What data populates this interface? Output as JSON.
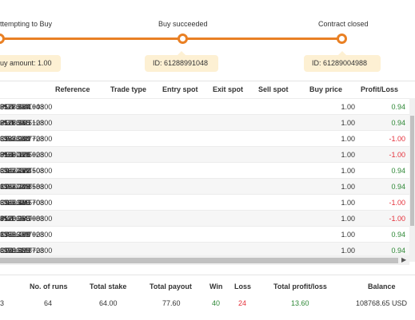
{
  "progress": {
    "steps": [
      {
        "label": "ttempting to Buy",
        "info": "uy amount: 1.00"
      },
      {
        "label": "Buy succeeded",
        "info": "ID: 61288991048"
      },
      {
        "label": "Contract closed",
        "info": "ID: 61289004988"
      }
    ],
    "accent_color": "#e98024"
  },
  "trades": {
    "headers": {
      "reference": "Reference",
      "trade_type": "Trade type",
      "entry_spot": "Entry spot",
      "exit_spot": "Exit spot",
      "sell_spot": "Sell spot",
      "buy_price": "Buy price",
      "profit_loss": "Profit/Loss"
    },
    "rows": [
      {
        "time": "3:29 GMT+0300",
        "reference": "61288991048",
        "trade_type": "PUT",
        "entry_spot": "3577.867",
        "exit_spot": "3577.624",
        "sell_spot": "3577.624",
        "buy_price": "1.00",
        "profit_loss": "0.94"
      },
      {
        "time": "2:39 GMT+0300",
        "reference": "61288925128",
        "trade_type": "PUT",
        "entry_spot": "3577.246",
        "exit_spot": "3576.556",
        "sell_spot": "3576.556",
        "buy_price": "1.00",
        "profit_loss": "0.94"
      },
      {
        "time": "3:54 GMT+0300",
        "reference": "61288227728",
        "trade_type": "CALL",
        "entry_spot": "3567.233",
        "exit_spot": "3567.044",
        "sell_spot": "3567.044",
        "buy_price": "1.00",
        "profit_loss": "-1.00"
      },
      {
        "time": "9:55 GMT+0300",
        "reference": "61287895028",
        "trade_type": "PUT",
        "entry_spot": "3568.376",
        "exit_spot": "3569.121",
        "sell_spot": "3569.121",
        "buy_price": "1.00",
        "profit_loss": "-1.00"
      },
      {
        "time": "6:15 GMT+0300",
        "reference": "61287584508",
        "trade_type": "CALL",
        "entry_spot": "3567.272",
        "exit_spot": "3567.481",
        "sell_spot": "3567.481",
        "buy_price": "1.00",
        "profit_loss": "0.94"
      },
      {
        "time": "1:39 GMT+0300",
        "reference": "61287208588",
        "trade_type": "CALL",
        "entry_spot": "3567.342",
        "exit_spot": "3567.708",
        "sell_spot": "3567.708",
        "buy_price": "1.00",
        "profit_loss": "0.94"
      },
      {
        "time": "6:13 GMT+0300",
        "reference": "61286765708",
        "trade_type": "CALL",
        "entry_spot": "3567.110",
        "exit_spot": "3566.886",
        "sell_spot": "3566.886",
        "buy_price": "1.00",
        "profit_loss": "-1.00"
      },
      {
        "time": "4:48 GMT+0300",
        "reference": "61286649088",
        "trade_type": "PUT",
        "entry_spot": "3570.095",
        "exit_spot": "3570.385",
        "sell_spot": "3570.385",
        "buy_price": "1.00",
        "profit_loss": "-1.00"
      },
      {
        "time": "1:43 GMT+0300",
        "reference": "61286397028",
        "trade_type": "CALL",
        "entry_spot": "3569.483",
        "exit_spot": "3569.491",
        "sell_spot": "3569.491",
        "buy_price": "1.00",
        "profit_loss": "0.94"
      },
      {
        "time": "8:21 GMT+0300",
        "reference": "61286138728",
        "trade_type": "CALL",
        "entry_spot": "3569.888",
        "exit_spot": "3570.635",
        "sell_spot": "3570.635",
        "buy_price": "1.00",
        "profit_loss": "0.94"
      }
    ]
  },
  "summary": {
    "headers": {
      "runs": "No. of runs",
      "stake": "Total stake",
      "payout": "Total payout",
      "win": "Win",
      "loss": "Loss",
      "profit": "Total profit/loss",
      "balance": "Balance"
    },
    "values": {
      "first": "3",
      "runs": "64",
      "stake": "64.00",
      "payout": "77.60",
      "win": "40",
      "loss": "24",
      "profit": "13.60",
      "balance": "108768.65 USD"
    },
    "colors": {
      "positive": "#2e8836",
      "negative": "#e5313b"
    }
  }
}
